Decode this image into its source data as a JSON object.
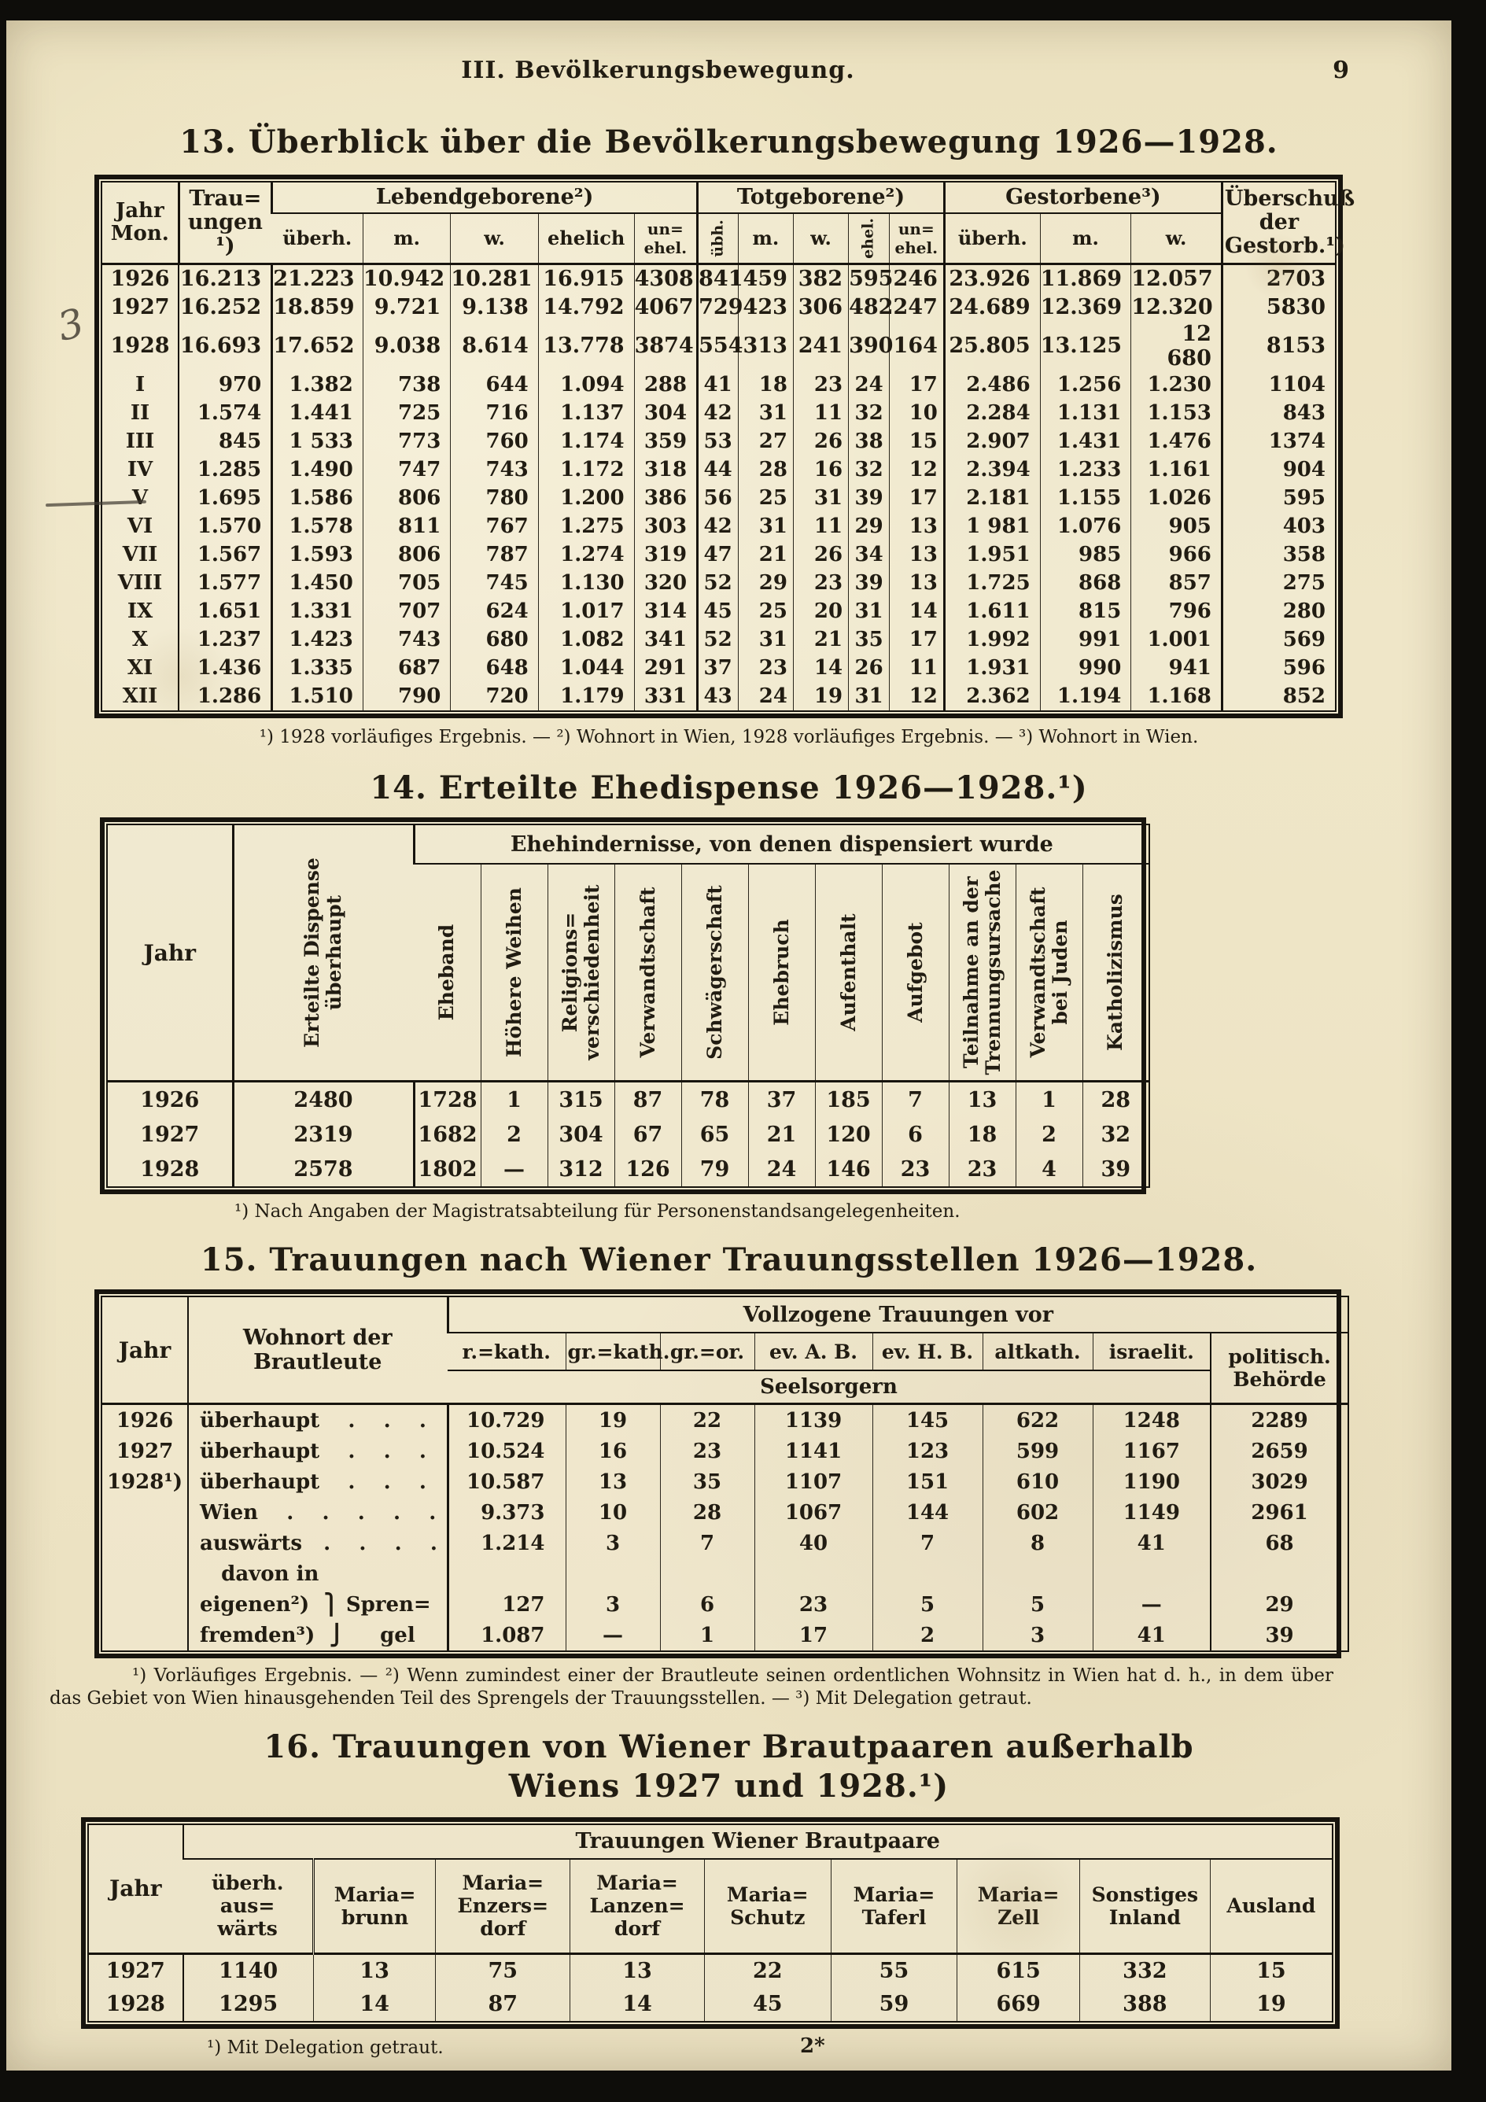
{
  "page": {
    "header": "III. Bevölkerungsbewegung.",
    "page_number": "9",
    "margin_note": "3",
    "bottom_mark": "2*"
  },
  "t13": {
    "title": "13. Überblick über die Bevölkerungsbewegung 1926—1928.",
    "h": {
      "jahr_mon": "Jahr\nMon.",
      "trauungen": "Trau=\nungen\n¹)",
      "lebend": "Lebendgeborene²)",
      "tot": "Totgeborene²)",
      "gest": "Gestorbene³)",
      "ueberschuss": "Überschuß\nder\nGestorb.¹)",
      "sub": [
        "überh.",
        "m.",
        "w.",
        "ehelich",
        "un=\nehel.",
        "übh.",
        "m.",
        "w.",
        "ehel.",
        "un=\nehel.",
        "überh.",
        "m.",
        "w."
      ]
    },
    "rows": [
      [
        "1926",
        "16.213",
        "21.223",
        "10.942",
        "10.281",
        "16.915",
        "4308",
        "841",
        "459",
        "382",
        "595",
        "246",
        "23.926",
        "11.869",
        "12.057",
        "2703"
      ],
      [
        "1927",
        "16.252",
        "18.859",
        "9.721",
        "9.138",
        "14.792",
        "4067",
        "729",
        "423",
        "306",
        "482",
        "247",
        "24.689",
        "12.369",
        "12.320",
        "5830"
      ],
      [
        "1928",
        "16.693",
        "17.652",
        "9.038",
        "8.614",
        "13.778",
        "3874",
        "554",
        "313",
        "241",
        "390",
        "164",
        "25.805",
        "13.125",
        "12 680",
        "8153"
      ],
      [
        "I",
        "970",
        "1.382",
        "738",
        "644",
        "1.094",
        "288",
        "41",
        "18",
        "23",
        "24",
        "17",
        "2.486",
        "1.256",
        "1.230",
        "1104"
      ],
      [
        "II",
        "1.574",
        "1.441",
        "725",
        "716",
        "1.137",
        "304",
        "42",
        "31",
        "11",
        "32",
        "10",
        "2.284",
        "1.131",
        "1.153",
        "843"
      ],
      [
        "III",
        "845",
        "1 533",
        "773",
        "760",
        "1.174",
        "359",
        "53",
        "27",
        "26",
        "38",
        "15",
        "2.907",
        "1.431",
        "1.476",
        "1374"
      ],
      [
        "IV",
        "1.285",
        "1.490",
        "747",
        "743",
        "1.172",
        "318",
        "44",
        "28",
        "16",
        "32",
        "12",
        "2.394",
        "1.233",
        "1.161",
        "904"
      ],
      [
        "V",
        "1.695",
        "1.586",
        "806",
        "780",
        "1.200",
        "386",
        "56",
        "25",
        "31",
        "39",
        "17",
        "2.181",
        "1.155",
        "1.026",
        "595"
      ],
      [
        "VI",
        "1.570",
        "1.578",
        "811",
        "767",
        "1.275",
        "303",
        "42",
        "31",
        "11",
        "29",
        "13",
        "1 981",
        "1.076",
        "905",
        "403"
      ],
      [
        "VII",
        "1.567",
        "1.593",
        "806",
        "787",
        "1.274",
        "319",
        "47",
        "21",
        "26",
        "34",
        "13",
        "1.951",
        "985",
        "966",
        "358"
      ],
      [
        "VIII",
        "1.577",
        "1.450",
        "705",
        "745",
        "1.130",
        "320",
        "52",
        "29",
        "23",
        "39",
        "13",
        "1.725",
        "868",
        "857",
        "275"
      ],
      [
        "IX",
        "1.651",
        "1.331",
        "707",
        "624",
        "1.017",
        "314",
        "45",
        "25",
        "20",
        "31",
        "14",
        "1.611",
        "815",
        "796",
        "280"
      ],
      [
        "X",
        "1.237",
        "1.423",
        "743",
        "680",
        "1.082",
        "341",
        "52",
        "31",
        "21",
        "35",
        "17",
        "1.992",
        "991",
        "1.001",
        "569"
      ],
      [
        "XI",
        "1.436",
        "1.335",
        "687",
        "648",
        "1.044",
        "291",
        "37",
        "23",
        "14",
        "26",
        "11",
        "1.931",
        "990",
        "941",
        "596"
      ],
      [
        "XII",
        "1.286",
        "1.510",
        "790",
        "720",
        "1.179",
        "331",
        "43",
        "24",
        "19",
        "31",
        "12",
        "2.362",
        "1.194",
        "1.168",
        "852"
      ]
    ],
    "footnote": "¹) 1928 vorläufiges Ergebnis. — ²) Wohnort in Wien, 1928 vorläufiges Ergebnis. — ³) Wohnort in Wien."
  },
  "t14": {
    "title": "14. Erteilte Ehedispense 1926—1928.¹)",
    "h": {
      "jahr": "Jahr",
      "erteilte": "Erteilte Dispense\nüberhaupt",
      "group": "Ehehindernisse, von denen dispensiert wurde"
    },
    "cols": [
      "Eheband",
      "Höhere Weihen",
      "Religions=\nverschiedenheit",
      "Verwandtschaft",
      "Schwägerschaft",
      "Ehebruch",
      "Aufenthalt",
      "Aufgebot",
      "Teilnahme an der\nTrennungsursache",
      "Verwandtschaft\nbei Juden",
      "Katholizismus"
    ],
    "rows": [
      [
        "1926",
        "2480",
        "1728",
        "1",
        "315",
        "87",
        "78",
        "37",
        "185",
        "7",
        "13",
        "1",
        "28"
      ],
      [
        "1927",
        "2319",
        "1682",
        "2",
        "304",
        "67",
        "65",
        "21",
        "120",
        "6",
        "18",
        "2",
        "32"
      ],
      [
        "1928",
        "2578",
        "1802",
        "—",
        "312",
        "126",
        "79",
        "24",
        "146",
        "23",
        "23",
        "4",
        "39"
      ]
    ],
    "footnote": "¹) Nach Angaben der Magistratsabteilung für Personenstandsangelegenheiten."
  },
  "t15": {
    "title": "15. Trauungen nach Wiener Trauungsstellen 1926—1928.",
    "h": {
      "jahr": "Jahr",
      "wohnort": "Wohnort der\nBrautleute",
      "group": "Vollzogene Trauungen vor",
      "seelsorgern": "Seelsorgern",
      "politisch": "politisch.\nBehörde",
      "cols": [
        "r.=kath.",
        "gr.=kath.",
        "gr.=or.",
        "ev. A. B.",
        "ev. H. B.",
        "altkath.",
        "israelit."
      ]
    },
    "rows": [
      [
        "1926",
        "überhaupt    .    .    .",
        "10.729",
        "19",
        "22",
        "1139",
        "145",
        "622",
        "1248",
        "2289"
      ],
      [
        "1927",
        "überhaupt    .    .    .",
        "10.524",
        "16",
        "23",
        "1141",
        "123",
        "599",
        "1167",
        "2659"
      ],
      [
        "1928¹)",
        "überhaupt    .    .    .",
        "10.587",
        "13",
        "35",
        "1107",
        "151",
        "610",
        "1190",
        "3029"
      ],
      [
        "",
        "Wien    .    .    .    .    .",
        "9.373",
        "10",
        "28",
        "1067",
        "144",
        "602",
        "1149",
        "2961"
      ],
      [
        "",
        "auswärts   .    .    .    .",
        "1.214",
        "3",
        "7",
        "40",
        "7",
        "8",
        "41",
        "68"
      ],
      [
        "",
        "   davon in",
        "",
        "",
        "",
        "",
        "",
        "",
        "",
        ""
      ],
      [
        "",
        "eigenen²)  ⎫ Spren=",
        "127",
        "3",
        "6",
        "23",
        "5",
        "5",
        "—",
        "29"
      ],
      [
        "",
        "fremden³)  ⎭     gel",
        "1.087",
        "—",
        "1",
        "17",
        "2",
        "3",
        "41",
        "39"
      ]
    ],
    "footnote": "¹) Vorläufiges Ergebnis. — ²) Wenn zumindest einer der Brautleute seinen ordentlichen Wohnsitz in Wien hat d. h., in dem über das Gebiet von Wien hinausgehenden Teil des Sprengels der Trauungsstellen. — ³) Mit Delegation getraut."
  },
  "t16": {
    "title": "16. Trauungen von Wiener Brautpaaren außerhalb\nWiens 1927 und 1928.¹)",
    "h": {
      "jahr": "Jahr",
      "group": "Trauungen Wiener Brautpaare",
      "cols": [
        "überh.\naus=\nwärts",
        "Maria=\nbrunn",
        "Maria=\nEnzers=\ndorf",
        "Maria=\nLanzen=\ndorf",
        "Maria=\nSchutz",
        "Maria=\nTaferl",
        "Maria=\nZell",
        "Sonstiges\nInland",
        "Ausland"
      ]
    },
    "rows": [
      [
        "1927",
        "1140",
        "13",
        "75",
        "13",
        "22",
        "55",
        "615",
        "332",
        "15"
      ],
      [
        "1928",
        "1295",
        "14",
        "87",
        "14",
        "45",
        "59",
        "669",
        "388",
        "19"
      ]
    ],
    "footnote": "¹) Mit Delegation getraut."
  }
}
